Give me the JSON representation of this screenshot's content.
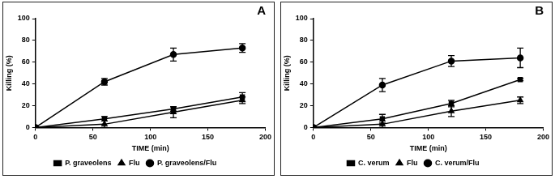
{
  "chart_data": [
    {
      "type": "line",
      "title": "A",
      "x_label": "TIME (min)",
      "y_label": "Killing (%)",
      "x": [
        0,
        60,
        120,
        180
      ],
      "series": [
        {
          "name": "P. graveolens",
          "color": "#000000",
          "marker": "square",
          "line_style": "solid",
          "values": [
            0,
            8,
            17,
            28
          ],
          "errors": [
            0,
            2,
            2,
            4
          ]
        },
        {
          "name": "Flu",
          "color": "#000000",
          "marker": "triangle",
          "line_style": "solid",
          "values": [
            0,
            3,
            14,
            25
          ],
          "errors": [
            0,
            3,
            5,
            3
          ]
        },
        {
          "name": "P. graveolens/Flu",
          "color": "#000000",
          "marker": "circle",
          "line_style": "solid",
          "values": [
            0,
            42,
            67,
            73
          ],
          "errors": [
            0,
            3,
            6,
            4
          ]
        }
      ],
      "xlim": [
        0,
        200
      ],
      "xticks": [
        0,
        50,
        100,
        150,
        200
      ],
      "ylim": [
        0,
        100
      ],
      "yticks": [
        0,
        20,
        40,
        60,
        80,
        100
      ],
      "grid": false,
      "legend": "bottom"
    },
    {
      "type": "line",
      "title": "B",
      "x_label": "TIME (min)",
      "y_label": "Killing (%)",
      "x": [
        0,
        60,
        120,
        180
      ],
      "series": [
        {
          "name": "C. verum",
          "color": "#000000",
          "marker": "square",
          "line_style": "solid",
          "values": [
            0,
            8,
            22,
            44
          ],
          "errors": [
            0,
            4,
            3,
            1
          ]
        },
        {
          "name": "Flu",
          "color": "#000000",
          "marker": "triangle",
          "line_style": "solid",
          "values": [
            0,
            3,
            15,
            25
          ],
          "errors": [
            0,
            3,
            5,
            3
          ]
        },
        {
          "name": "C. verum/Flu",
          "color": "#000000",
          "marker": "circle",
          "line_style": "solid",
          "values": [
            0,
            39,
            61,
            64
          ],
          "errors": [
            0,
            6,
            5,
            9
          ]
        }
      ],
      "xlim": [
        0,
        200
      ],
      "xticks": [
        0,
        50,
        100,
        150,
        200
      ],
      "ylim": [
        0,
        100
      ],
      "yticks": [
        0,
        20,
        40,
        60,
        80,
        100
      ],
      "grid": false,
      "legend": "bottom"
    }
  ]
}
